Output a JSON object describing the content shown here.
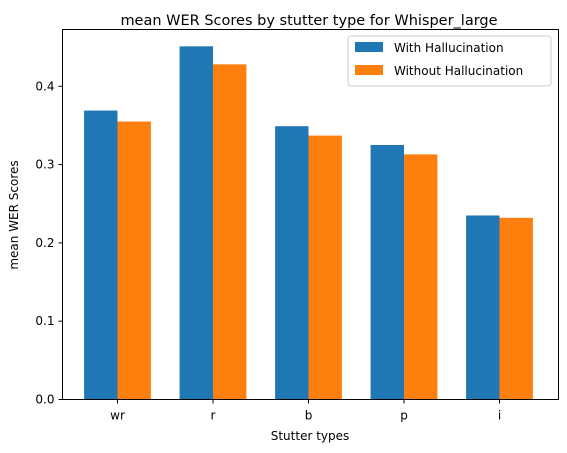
{
  "chart_data": {
    "type": "bar",
    "title": "mean WER Scores by stutter type for Whisper_large",
    "xlabel": "Stutter types",
    "ylabel": "mean WER Scores",
    "categories": [
      "wr",
      "r",
      "b",
      "p",
      "i"
    ],
    "series": [
      {
        "name": "With Hallucination",
        "color": "#1f77b4",
        "values": [
          0.369,
          0.451,
          0.349,
          0.325,
          0.235
        ]
      },
      {
        "name": "Without Hallucination",
        "color": "#ff7f0e",
        "values": [
          0.355,
          0.428,
          0.337,
          0.313,
          0.232
        ]
      }
    ],
    "ylim": [
      0,
      0.4725
    ],
    "yticks": [
      0.0,
      0.1,
      0.2,
      0.3,
      0.4
    ],
    "ytick_labels": [
      "0.0",
      "0.1",
      "0.2",
      "0.3",
      "0.4"
    ],
    "grid": false,
    "legend_position": "top-right"
  }
}
